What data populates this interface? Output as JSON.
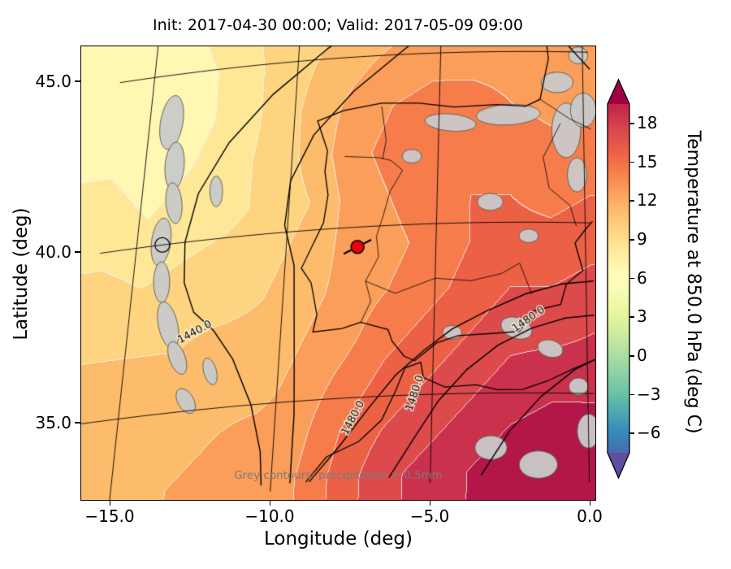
{
  "figure": {
    "title": "Init: 2017-04-30 00:00; Valid: 2017-05-09 09:00",
    "xlabel": "Longitude (deg)",
    "ylabel": "Latitude (deg)",
    "annotation": "Grey contours: precipitation > 0.5mm",
    "x_tick_labels": [
      "−15.0",
      "−10.0",
      "−5.0",
      "0.0"
    ],
    "x_tick_values": [
      -15,
      -10,
      -5,
      0
    ],
    "y_tick_labels": [
      "45.0",
      "40.0",
      "35.0"
    ],
    "y_tick_values": [
      45,
      40,
      35
    ],
    "colorbar": {
      "label": "Temperature at 850.0 hPa (deg C)",
      "tick_labels": [
        "18",
        "15",
        "12",
        "9",
        "6",
        "3",
        "0",
        "−3",
        "−6"
      ],
      "tick_values": [
        18,
        15,
        12,
        9,
        6,
        3,
        0,
        -3,
        -6
      ],
      "vmin": -7.5,
      "vmax": 19.5
    }
  },
  "chart_data": {
    "type": "heatmap",
    "title": "Init: 2017-04-30 00:00; Valid: 2017-05-09 09:00",
    "xlabel": "Longitude (deg)",
    "ylabel": "Latitude (deg)",
    "units": "deg C",
    "extent": {
      "lon_min": -16.0,
      "lon_max": 0.2,
      "lat_min": 32.7,
      "lat_max": 46.2
    },
    "lon": [
      -16.0,
      -14.65,
      -13.3,
      -11.95,
      -10.6,
      -9.25,
      -7.9,
      -6.55,
      -5.2,
      -3.85,
      -2.5,
      -1.15,
      0.2
    ],
    "lat": [
      46.2,
      44.85,
      43.5,
      42.15,
      40.8,
      39.45,
      38.1,
      36.75,
      35.4,
      34.05,
      32.7
    ],
    "temperature_c": [
      [
        7.0,
        7.0,
        7.5,
        8.5,
        9.5,
        10.0,
        10.5,
        11.0,
        11.5,
        12.0,
        12.5,
        12.5,
        12.5
      ],
      [
        6.5,
        6.5,
        7.0,
        8.0,
        9.5,
        10.5,
        11.5,
        12.5,
        13.0,
        13.0,
        13.0,
        13.0,
        13.0
      ],
      [
        7.0,
        6.5,
        7.0,
        8.0,
        9.5,
        11.0,
        12.5,
        13.5,
        14.0,
        14.0,
        13.5,
        13.0,
        13.5
      ],
      [
        7.5,
        7.0,
        7.5,
        8.5,
        9.5,
        11.0,
        13.0,
        14.0,
        14.5,
        15.0,
        14.5,
        14.0,
        14.0
      ],
      [
        8.0,
        7.5,
        8.0,
        8.5,
        9.5,
        10.5,
        12.5,
        13.5,
        14.5,
        15.0,
        15.0,
        14.5,
        15.0
      ],
      [
        9.0,
        8.5,
        9.0,
        9.5,
        10.0,
        11.0,
        12.5,
        13.0,
        14.0,
        15.0,
        15.5,
        15.5,
        16.0
      ],
      [
        10.0,
        9.5,
        10.0,
        10.0,
        10.5,
        11.5,
        12.5,
        13.5,
        14.5,
        15.5,
        16.5,
        16.5,
        17.0
      ],
      [
        10.5,
        10.5,
        10.5,
        11.0,
        11.0,
        12.0,
        13.0,
        14.5,
        15.5,
        16.5,
        17.5,
        17.5,
        18.0
      ],
      [
        11.0,
        11.0,
        11.0,
        11.5,
        11.5,
        12.5,
        14.0,
        15.5,
        16.5,
        17.5,
        18.5,
        19.0,
        19.0
      ],
      [
        11.5,
        11.5,
        11.5,
        12.0,
        12.5,
        13.0,
        15.0,
        16.5,
        17.5,
        18.5,
        19.5,
        20.0,
        20.0
      ],
      [
        12.0,
        12.0,
        12.0,
        12.5,
        13.0,
        13.5,
        15.5,
        17.5,
        18.5,
        19.5,
        20.5,
        21.0,
        20.5
      ]
    ],
    "band_step": 1.5,
    "colormap_stops": [
      [
        -9,
        "#5e4fa2"
      ],
      [
        -6,
        "#3288bd"
      ],
      [
        -3,
        "#66c2a5"
      ],
      [
        0,
        "#abdda4"
      ],
      [
        3,
        "#e6f598"
      ],
      [
        6,
        "#ffffbf"
      ],
      [
        9,
        "#fee08b"
      ],
      [
        12,
        "#fdae61"
      ],
      [
        15,
        "#f46d43"
      ],
      [
        18,
        "#d53e4f"
      ],
      [
        21.5,
        "#9e0142"
      ]
    ],
    "contour_line_color": "#000000",
    "thin_contour_color": "#f2f2f2",
    "precip_fill": "#c9c9c9",
    "precip_edge": "#5a5a46",
    "marker": {
      "lon": -7.62,
      "lat": 39.42,
      "color": "#e8000b"
    },
    "analysis_circle": {
      "lon": -14.15,
      "lat": 40.0
    },
    "contour_labels": [
      {
        "text": "1440.0",
        "lon": -12.8,
        "lat": 37.3,
        "angle": -28
      },
      {
        "text": "1480.0",
        "lon": -7.5,
        "lat": 34.4,
        "angle": -62
      },
      {
        "text": "1480.0",
        "lon": -5.55,
        "lat": 35.05,
        "angle": -72
      },
      {
        "text": "1480.0",
        "lon": -1.9,
        "lat": 37.15,
        "angle": -35
      }
    ],
    "height_contours": [
      [
        [
          -7.2,
          46.3
        ],
        [
          -9.0,
          45.3
        ],
        [
          -10.8,
          44.1
        ],
        [
          -12.2,
          42.8
        ],
        [
          -13.1,
          41.4
        ],
        [
          -13.4,
          40.0
        ],
        [
          -13.3,
          38.8
        ],
        [
          -12.9,
          37.9
        ],
        [
          -12.2,
          37.3
        ],
        [
          -11.5,
          36.4
        ],
        [
          -10.8,
          35.0
        ],
        [
          -10.4,
          33.6
        ],
        [
          -10.3,
          32.6
        ]
      ],
      [
        [
          -4.4,
          46.3
        ],
        [
          -6.2,
          45.2
        ],
        [
          -8.0,
          44.0
        ],
        [
          -9.3,
          42.8
        ],
        [
          -10.0,
          41.5
        ],
        [
          -10.1,
          40.2
        ],
        [
          -9.7,
          39.0
        ],
        [
          -9.6,
          37.6
        ],
        [
          -9.5,
          36.2
        ],
        [
          -9.4,
          34.6
        ],
        [
          -9.4,
          32.6
        ]
      ],
      [
        [
          -5.8,
          46.35
        ],
        [
          -3.4,
          45.7
        ],
        [
          -1.0,
          45.35
        ],
        [
          0.25,
          45.3
        ]
      ],
      [
        [
          -1.7,
          46.3
        ],
        [
          -0.3,
          45.0
        ],
        [
          0.25,
          44.5
        ]
      ],
      [
        [
          -8.8,
          32.6
        ],
        [
          -7.9,
          33.6
        ],
        [
          -7.0,
          34.7
        ],
        [
          -6.2,
          35.6
        ],
        [
          -5.3,
          36.3
        ],
        [
          -4.4,
          36.9
        ],
        [
          -3.3,
          37.4
        ],
        [
          -2.0,
          37.9
        ],
        [
          -0.8,
          38.2
        ],
        [
          0.25,
          38.3
        ]
      ],
      [
        [
          -6.3,
          32.6
        ],
        [
          -5.5,
          33.8
        ],
        [
          -4.8,
          34.8
        ],
        [
          -3.9,
          35.7
        ],
        [
          -2.9,
          36.4
        ],
        [
          -1.8,
          36.9
        ],
        [
          -0.7,
          37.2
        ],
        [
          0.25,
          37.3
        ]
      ],
      [
        [
          -3.4,
          32.6
        ],
        [
          -2.5,
          33.9
        ],
        [
          -1.5,
          34.9
        ],
        [
          -0.4,
          35.7
        ],
        [
          0.25,
          36.0
        ]
      ]
    ],
    "coastlines": [
      [
        [
          -1.4,
          46.3
        ],
        [
          -1.3,
          45.5
        ],
        [
          -1.2,
          44.8
        ],
        [
          -1.5,
          43.6
        ],
        [
          -2.0,
          43.4
        ],
        [
          -3.0,
          43.45
        ],
        [
          -4.5,
          43.4
        ],
        [
          -5.7,
          43.55
        ],
        [
          -7.0,
          43.6
        ],
        [
          -8.3,
          43.45
        ],
        [
          -9.2,
          43.2
        ],
        [
          -8.8,
          42.3
        ],
        [
          -8.85,
          41.7
        ],
        [
          -8.7,
          41.0
        ],
        [
          -8.8,
          40.2
        ],
        [
          -9.45,
          38.9
        ],
        [
          -9.1,
          38.45
        ],
        [
          -8.85,
          37.5
        ],
        [
          -8.95,
          37.0
        ],
        [
          -8.0,
          37.05
        ],
        [
          -7.4,
          37.2
        ],
        [
          -6.5,
          36.95
        ],
        [
          -6.35,
          36.6
        ],
        [
          -5.95,
          36.15
        ],
        [
          -5.6,
          36.0
        ],
        [
          -4.9,
          36.5
        ],
        [
          -4.2,
          36.7
        ],
        [
          -3.0,
          36.75
        ],
        [
          -2.2,
          36.8
        ],
        [
          -1.75,
          37.4
        ],
        [
          -0.85,
          37.6
        ],
        [
          -0.65,
          38.2
        ],
        [
          -0.1,
          38.6
        ],
        [
          -0.35,
          39.4
        ],
        [
          0.0,
          39.8
        ],
        [
          0.25,
          40.05
        ]
      ],
      [
        [
          -8.9,
          32.6
        ],
        [
          -8.3,
          33.3
        ],
        [
          -7.3,
          33.7
        ],
        [
          -6.6,
          34.3
        ],
        [
          -6.2,
          35.1
        ],
        [
          -5.9,
          35.8
        ],
        [
          -5.4,
          35.95
        ],
        [
          -5.3,
          35.5
        ],
        [
          -4.6,
          35.2
        ],
        [
          -3.6,
          35.25
        ],
        [
          -2.9,
          35.1
        ],
        [
          -2.1,
          35.1
        ],
        [
          -1.3,
          35.35
        ],
        [
          -0.5,
          35.7
        ],
        [
          0.25,
          36.0
        ]
      ]
    ],
    "admin_borders": [
      [
        [
          -1.5,
          43.6
        ],
        [
          -0.5,
          43.05
        ],
        [
          0.25,
          42.75
        ]
      ],
      [
        [
          -8.2,
          42.1
        ],
        [
          -7.0,
          42.0
        ],
        [
          -6.6,
          41.9
        ],
        [
          -6.2,
          41.6
        ],
        [
          -6.6,
          41.0
        ],
        [
          -6.8,
          40.3
        ],
        [
          -7.0,
          39.7
        ],
        [
          -6.9,
          39.1
        ],
        [
          -7.3,
          38.4
        ],
        [
          -7.1,
          37.8
        ],
        [
          -7.4,
          37.2
        ]
      ],
      [
        [
          -7.0,
          43.5
        ],
        [
          -6.8,
          42.5
        ],
        [
          -6.9,
          41.95
        ]
      ],
      [
        [
          -7.3,
          38.4
        ],
        [
          -6.3,
          38.0
        ],
        [
          -5.0,
          38.4
        ],
        [
          -3.8,
          38.3
        ],
        [
          -2.8,
          38.5
        ],
        [
          -2.2,
          38.8
        ],
        [
          -1.8,
          37.9
        ]
      ],
      [
        [
          -0.8,
          42.9
        ],
        [
          -1.4,
          41.9
        ],
        [
          -1.2,
          41.0
        ],
        [
          -0.5,
          40.5
        ],
        [
          -0.3,
          39.9
        ]
      ]
    ],
    "precip_patches": [
      [
        -14.25,
        43.6,
        0.35,
        0.8,
        10
      ],
      [
        -14.0,
        42.3,
        0.3,
        0.7,
        5
      ],
      [
        -13.9,
        41.2,
        0.25,
        0.6,
        -5
      ],
      [
        -14.2,
        40.1,
        0.3,
        0.7,
        8
      ],
      [
        -14.05,
        38.9,
        0.25,
        0.6,
        0
      ],
      [
        -13.7,
        37.6,
        0.3,
        0.7,
        -12
      ],
      [
        -13.3,
        36.6,
        0.25,
        0.5,
        -20
      ],
      [
        -12.5,
        41.4,
        0.2,
        0.45,
        0
      ],
      [
        -12.2,
        36.1,
        0.2,
        0.4,
        -15
      ],
      [
        -12.9,
        35.3,
        0.25,
        0.4,
        -30
      ],
      [
        -4.6,
        42.95,
        0.8,
        0.25,
        5
      ],
      [
        -2.6,
        43.15,
        1.0,
        0.3,
        -3
      ],
      [
        -5.9,
        42.0,
        0.3,
        0.2,
        0
      ],
      [
        -0.6,
        42.7,
        0.45,
        0.8,
        0
      ],
      [
        -0.25,
        41.4,
        0.3,
        0.5,
        0
      ],
      [
        -0.9,
        44.1,
        0.5,
        0.3,
        0
      ],
      [
        0.0,
        43.3,
        0.4,
        0.5,
        0
      ],
      [
        -0.15,
        44.9,
        0.3,
        0.25,
        0
      ],
      [
        -3.2,
        40.6,
        0.4,
        0.25,
        0
      ],
      [
        -1.9,
        39.6,
        0.3,
        0.2,
        0
      ],
      [
        -2.3,
        36.9,
        0.5,
        0.3,
        20
      ],
      [
        -1.2,
        36.3,
        0.4,
        0.25,
        15
      ],
      [
        -4.4,
        36.8,
        0.3,
        0.2,
        0
      ],
      [
        -3.1,
        33.4,
        0.5,
        0.35,
        0
      ],
      [
        -1.6,
        32.9,
        0.6,
        0.4,
        0
      ],
      [
        0.0,
        33.9,
        0.35,
        0.5,
        0
      ],
      [
        -0.3,
        35.2,
        0.3,
        0.25,
        0
      ]
    ]
  }
}
